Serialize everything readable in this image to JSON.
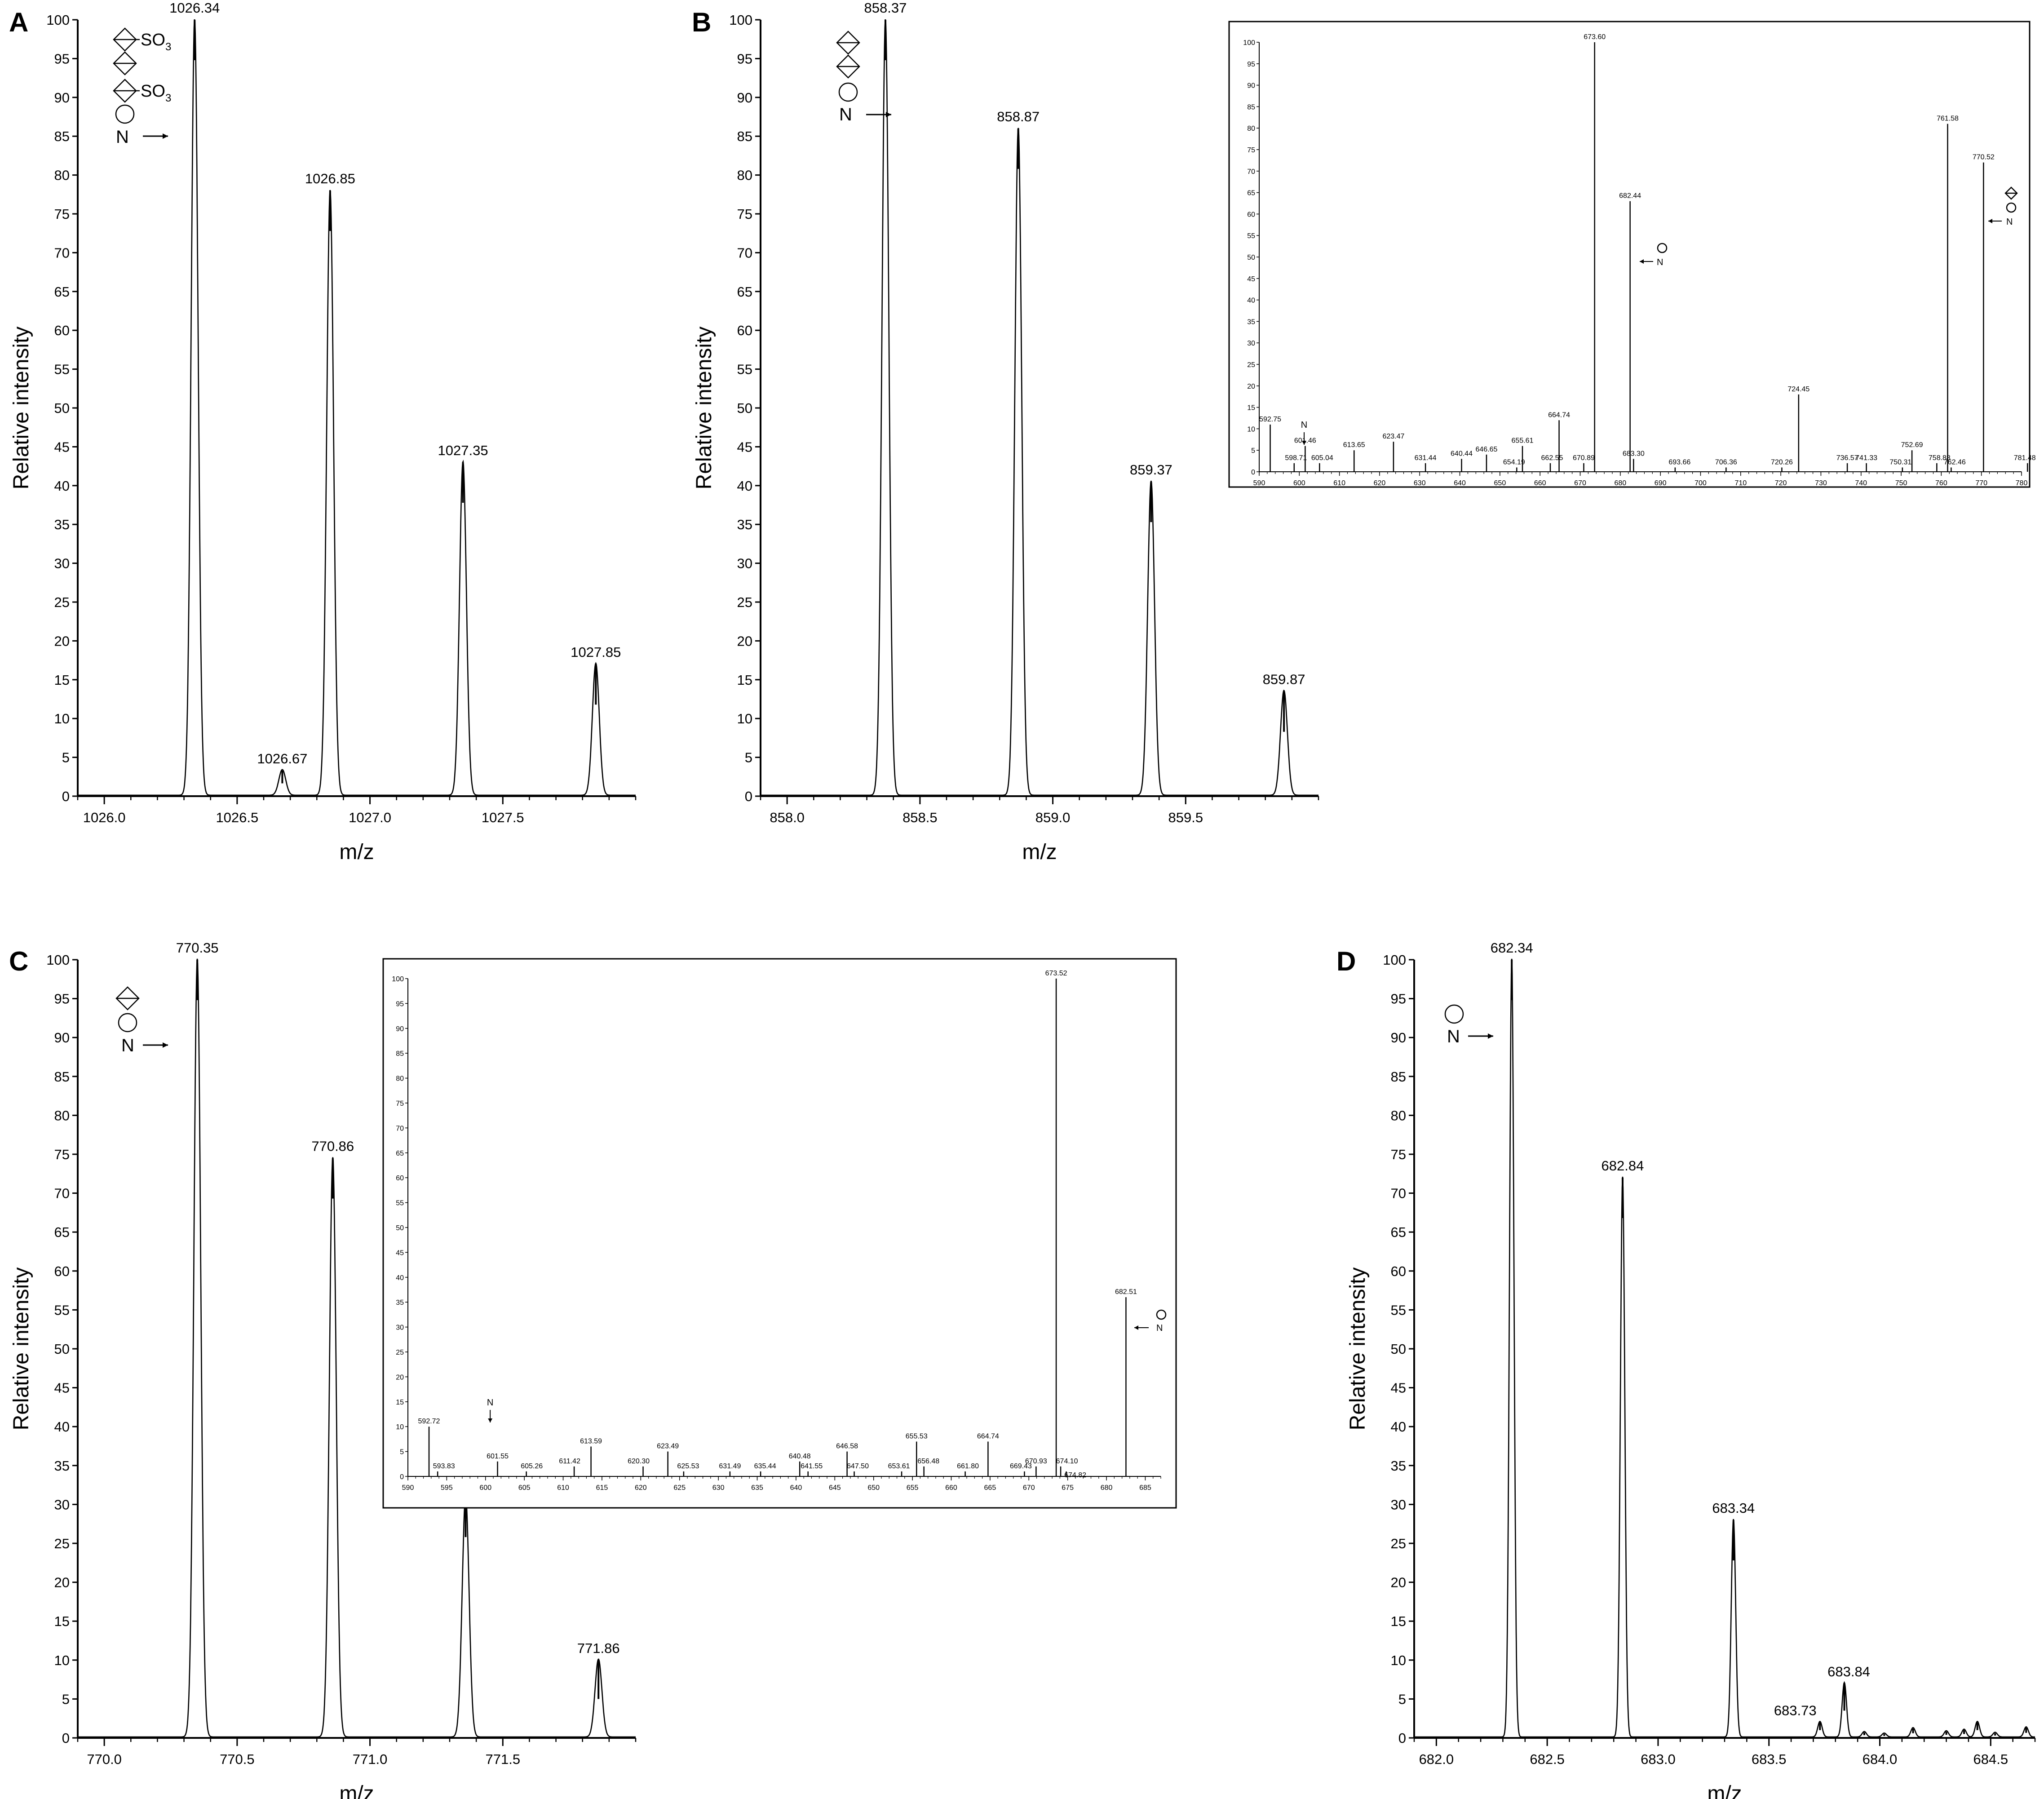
{
  "figure": {
    "panels": [
      {
        "letter": "A",
        "ylabel": "Relative intensity",
        "xlabel": "m/z"
      },
      {
        "letter": "B",
        "ylabel": "Relative intensity",
        "xlabel": "m/z"
      },
      {
        "letter": "C",
        "ylabel": "Relative intensity",
        "xlabel": "m/z"
      },
      {
        "letter": "D",
        "ylabel": "Relative intensity",
        "xlabel": "m/z"
      }
    ]
  },
  "chart_data": [
    {
      "id": "A",
      "type": "line",
      "panel_label": "A",
      "xlabel": "m/z",
      "ylabel": "Relative intensity",
      "xlim": [
        1025.9,
        1028.0
      ],
      "ylim": [
        0,
        100
      ],
      "xticks": [
        1026.0,
        1026.5,
        1027.0,
        1027.5
      ],
      "xtick_labels": [
        "1026.0",
        "1026.5",
        "1027.0",
        "1027.5"
      ],
      "yticks": [
        0,
        5,
        10,
        15,
        20,
        25,
        30,
        35,
        40,
        45,
        50,
        55,
        60,
        65,
        70,
        75,
        80,
        85,
        90,
        95,
        100
      ],
      "peaks": [
        {
          "mz": 1026.34,
          "intensity": 100,
          "label": "1026.34"
        },
        {
          "mz": 1026.67,
          "intensity": 3.3,
          "label": "1026.67"
        },
        {
          "mz": 1026.85,
          "intensity": 78,
          "label": "1026.85"
        },
        {
          "mz": 1027.35,
          "intensity": 43,
          "label": "1027.35"
        },
        {
          "mz": 1027.85,
          "intensity": 17,
          "label": "1027.85"
        }
      ],
      "legend": {
        "symbols": [
          "diamond",
          "diamond",
          "diamond",
          "circle"
        ],
        "so3": [
          "SO3",
          "",
          "SO3",
          ""
        ],
        "so3_text": "SO",
        "so3_sub": "3",
        "n_label": "N"
      }
    },
    {
      "id": "B",
      "type": "line",
      "panel_label": "B",
      "xlabel": "m/z",
      "ylabel": "Relative intensity",
      "xlim": [
        857.9,
        860.0
      ],
      "ylim": [
        0,
        100
      ],
      "xticks": [
        858.0,
        858.5,
        859.0,
        859.5
      ],
      "xtick_labels": [
        "858.0",
        "858.5",
        "859.0",
        "859.5"
      ],
      "yticks": [
        0,
        5,
        10,
        15,
        20,
        25,
        30,
        35,
        40,
        45,
        50,
        55,
        60,
        65,
        70,
        75,
        80,
        85,
        90,
        95,
        100
      ],
      "peaks": [
        {
          "mz": 858.37,
          "intensity": 100,
          "label": "858.37"
        },
        {
          "mz": 858.87,
          "intensity": 86,
          "label": "858.87"
        },
        {
          "mz": 859.37,
          "intensity": 40.5,
          "label": "859.37"
        },
        {
          "mz": 859.87,
          "intensity": 13.5,
          "label": "859.87"
        }
      ],
      "legend": {
        "symbols": [
          "diamond",
          "diamond",
          "circle"
        ],
        "n_label": "N"
      }
    },
    {
      "id": "B-inset",
      "type": "bar",
      "parent": "B",
      "xlim": [
        590,
        780
      ],
      "ylim": [
        0,
        100
      ],
      "xticks": [
        590,
        600,
        610,
        620,
        630,
        640,
        650,
        660,
        670,
        680,
        690,
        700,
        710,
        720,
        730,
        740,
        750,
        760,
        770,
        780
      ],
      "yticks": [
        0,
        5,
        10,
        15,
        20,
        25,
        30,
        35,
        40,
        45,
        50,
        55,
        60,
        65,
        70,
        75,
        80,
        85,
        90,
        95,
        100
      ],
      "peaks": [
        {
          "mz": 592.75,
          "intensity": 11,
          "label": "592.75"
        },
        {
          "mz": 598.71,
          "intensity": 2,
          "label": "598.71"
        },
        {
          "mz": 601.46,
          "intensity": 6,
          "label": "601.46"
        },
        {
          "mz": 605.04,
          "intensity": 2,
          "label": "605.04"
        },
        {
          "mz": 613.65,
          "intensity": 5,
          "label": "613.65"
        },
        {
          "mz": 623.47,
          "intensity": 7,
          "label": "623.47"
        },
        {
          "mz": 631.44,
          "intensity": 2,
          "label": "631.44"
        },
        {
          "mz": 640.44,
          "intensity": 3,
          "label": "640.44"
        },
        {
          "mz": 646.65,
          "intensity": 4,
          "label": "646.65"
        },
        {
          "mz": 654.19,
          "intensity": 1,
          "label": "654.19"
        },
        {
          "mz": 655.61,
          "intensity": 6,
          "label": "655.61"
        },
        {
          "mz": 662.55,
          "intensity": 2,
          "label": "662.55"
        },
        {
          "mz": 664.74,
          "intensity": 12,
          "label": "664.74"
        },
        {
          "mz": 670.89,
          "intensity": 2,
          "label": "670.89"
        },
        {
          "mz": 673.6,
          "intensity": 100,
          "label": "673.60"
        },
        {
          "mz": 682.44,
          "intensity": 63,
          "label": "682.44"
        },
        {
          "mz": 683.3,
          "intensity": 3,
          "label": "683.30"
        },
        {
          "mz": 693.66,
          "intensity": 1,
          "label": "693.66"
        },
        {
          "mz": 706.36,
          "intensity": 1,
          "label": "706.36"
        },
        {
          "mz": 720.26,
          "intensity": 1,
          "label": "720.26"
        },
        {
          "mz": 724.45,
          "intensity": 18,
          "label": "724.45"
        },
        {
          "mz": 736.57,
          "intensity": 2,
          "label": "736.57"
        },
        {
          "mz": 741.33,
          "intensity": 2,
          "label": "741.33"
        },
        {
          "mz": 750.31,
          "intensity": 1,
          "label": "750.31"
        },
        {
          "mz": 752.69,
          "intensity": 5,
          "label": "752.69"
        },
        {
          "mz": 758.88,
          "intensity": 2,
          "label": "758.88"
        },
        {
          "mz": 761.58,
          "intensity": 81,
          "label": "761.58"
        },
        {
          "mz": 762.46,
          "intensity": 1,
          "label": "762.46"
        },
        {
          "mz": 770.52,
          "intensity": 72,
          "label": "770.52"
        },
        {
          "mz": 781.48,
          "intensity": 2,
          "label": "781.48"
        }
      ],
      "annotations": {
        "n_label": "N"
      }
    },
    {
      "id": "C",
      "type": "line",
      "panel_label": "C",
      "xlabel": "m/z",
      "ylabel": "Relative intensity",
      "xlim": [
        769.9,
        772.0
      ],
      "ylim": [
        0,
        100
      ],
      "xticks": [
        770.0,
        770.5,
        771.0,
        771.5
      ],
      "xtick_labels": [
        "770.0",
        "770.5",
        "771.0",
        "771.5"
      ],
      "yticks": [
        0,
        5,
        10,
        15,
        20,
        25,
        30,
        35,
        40,
        45,
        50,
        55,
        60,
        65,
        70,
        75,
        80,
        85,
        90,
        95,
        100
      ],
      "peaks": [
        {
          "mz": 770.35,
          "intensity": 100,
          "label": "770.35"
        },
        {
          "mz": 770.86,
          "intensity": 74.5,
          "label": "770.86"
        },
        {
          "mz": 771.36,
          "intensity": 31,
          "label": ""
        },
        {
          "mz": 771.86,
          "intensity": 10,
          "label": "771.86"
        }
      ],
      "legend": {
        "symbols": [
          "diamond",
          "circle"
        ],
        "n_label": "N"
      }
    },
    {
      "id": "C-inset",
      "type": "bar",
      "parent": "C",
      "xlim": [
        590,
        687
      ],
      "ylim": [
        0,
        100
      ],
      "xticks": [
        590,
        595,
        600,
        605,
        610,
        615,
        620,
        625,
        630,
        635,
        640,
        645,
        650,
        655,
        660,
        665,
        670,
        675,
        680,
        685
      ],
      "yticks": [
        0,
        5,
        10,
        15,
        20,
        25,
        30,
        35,
        40,
        45,
        50,
        55,
        60,
        65,
        70,
        75,
        80,
        85,
        90,
        95,
        100
      ],
      "peaks": [
        {
          "mz": 592.72,
          "intensity": 10,
          "label": "592.72"
        },
        {
          "mz": 593.83,
          "intensity": 1,
          "label": "593.83"
        },
        {
          "mz": 601.55,
          "intensity": 3,
          "label": "601.55"
        },
        {
          "mz": 605.26,
          "intensity": 1,
          "label": "605.26"
        },
        {
          "mz": 611.42,
          "intensity": 2,
          "label": "611.42"
        },
        {
          "mz": 613.59,
          "intensity": 6,
          "label": "613.59"
        },
        {
          "mz": 620.3,
          "intensity": 2,
          "label": "620.30"
        },
        {
          "mz": 623.49,
          "intensity": 5,
          "label": "623.49"
        },
        {
          "mz": 625.53,
          "intensity": 1,
          "label": "625.53"
        },
        {
          "mz": 631.49,
          "intensity": 1,
          "label": "631.49"
        },
        {
          "mz": 635.44,
          "intensity": 1,
          "label": "635.44"
        },
        {
          "mz": 640.48,
          "intensity": 3,
          "label": "640.48"
        },
        {
          "mz": 641.55,
          "intensity": 1,
          "label": "641.55"
        },
        {
          "mz": 646.58,
          "intensity": 5,
          "label": "646.58"
        },
        {
          "mz": 647.5,
          "intensity": 1,
          "label": "647.50"
        },
        {
          "mz": 653.61,
          "intensity": 1,
          "label": "653.61"
        },
        {
          "mz": 655.53,
          "intensity": 7,
          "label": "655.53"
        },
        {
          "mz": 656.48,
          "intensity": 2,
          "label": "656.48"
        },
        {
          "mz": 661.8,
          "intensity": 1,
          "label": "661.80"
        },
        {
          "mz": 664.74,
          "intensity": 7,
          "label": "664.74"
        },
        {
          "mz": 669.43,
          "intensity": 1,
          "label": "669.43"
        },
        {
          "mz": 670.93,
          "intensity": 2,
          "label": "670.93"
        },
        {
          "mz": 673.52,
          "intensity": 100,
          "label": "673.52"
        },
        {
          "mz": 674.1,
          "intensity": 2,
          "label": "674.10"
        },
        {
          "mz": 674.82,
          "intensity": 1,
          "label": "674.82"
        },
        {
          "mz": 682.51,
          "intensity": 36,
          "label": "682.51"
        }
      ],
      "annotations": {
        "n_label": "N"
      }
    },
    {
      "id": "D",
      "type": "line",
      "panel_label": "D",
      "xlabel": "m/z",
      "ylabel": "Relative intensity",
      "xlim": [
        681.9,
        684.7
      ],
      "ylim": [
        0,
        100
      ],
      "xticks": [
        682.0,
        682.5,
        683.0,
        683.5,
        684.0,
        684.5
      ],
      "xtick_labels": [
        "682.0",
        "682.5",
        "683.0",
        "683.5",
        "684.0",
        "684.5"
      ],
      "yticks": [
        0,
        5,
        10,
        15,
        20,
        25,
        30,
        35,
        40,
        45,
        50,
        55,
        60,
        65,
        70,
        75,
        80,
        85,
        90,
        95,
        100
      ],
      "peaks": [
        {
          "mz": 682.34,
          "intensity": 100,
          "label": "682.34"
        },
        {
          "mz": 682.84,
          "intensity": 72,
          "label": "682.84"
        },
        {
          "mz": 683.34,
          "intensity": 28,
          "label": "683.34"
        },
        {
          "mz": 683.73,
          "intensity": 2,
          "label": "683.73"
        },
        {
          "mz": 683.84,
          "intensity": 7,
          "label": "683.84"
        },
        {
          "mz": 683.93,
          "intensity": 0.7,
          "label": ""
        },
        {
          "mz": 684.02,
          "intensity": 0.5,
          "label": ""
        },
        {
          "mz": 684.15,
          "intensity": 1.2,
          "label": ""
        },
        {
          "mz": 684.3,
          "intensity": 0.8,
          "label": ""
        },
        {
          "mz": 684.38,
          "intensity": 1.0,
          "label": ""
        },
        {
          "mz": 684.44,
          "intensity": 2.0,
          "label": ""
        },
        {
          "mz": 684.52,
          "intensity": 0.6,
          "label": ""
        },
        {
          "mz": 684.66,
          "intensity": 1.3,
          "label": ""
        }
      ],
      "legend": {
        "symbols": [
          "circle"
        ],
        "n_label": "N"
      }
    }
  ]
}
